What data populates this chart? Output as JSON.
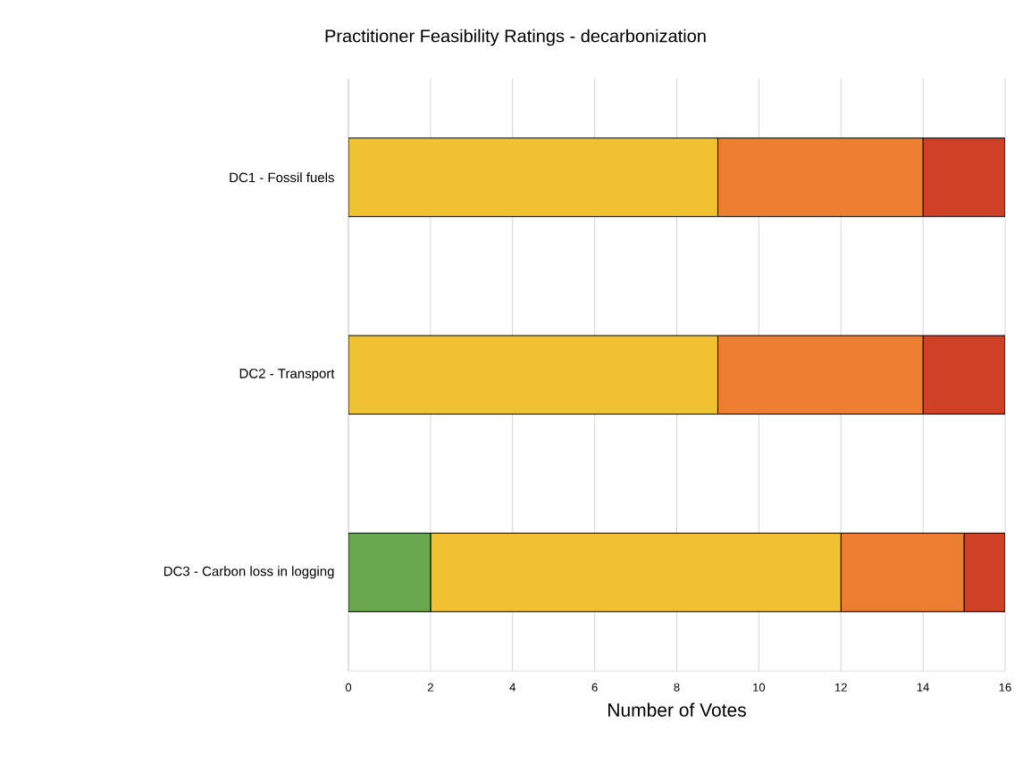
{
  "chart_data": {
    "type": "bar",
    "orientation": "horizontal",
    "stacked": true,
    "title": "Practitioner Feasibility Ratings - decarbonization",
    "xlabel": "Number of Votes",
    "categories": [
      "DC1 - Fossil fuels",
      "DC2 - Transport",
      "DC3 - Carbon  loss in logging"
    ],
    "series": [
      {
        "color": "#6aa84f",
        "values": [
          0,
          0,
          2
        ]
      },
      {
        "color": "#f0c232",
        "values": [
          9,
          9,
          10
        ]
      },
      {
        "color": "#ed7d31",
        "values": [
          5,
          5,
          3
        ]
      },
      {
        "color": "#cf4127",
        "values": [
          2,
          2,
          1
        ]
      }
    ],
    "xlim": [
      0,
      16
    ],
    "xticks": [
      0,
      2,
      4,
      6,
      8,
      10,
      12,
      14,
      16
    ],
    "grid": "x"
  }
}
